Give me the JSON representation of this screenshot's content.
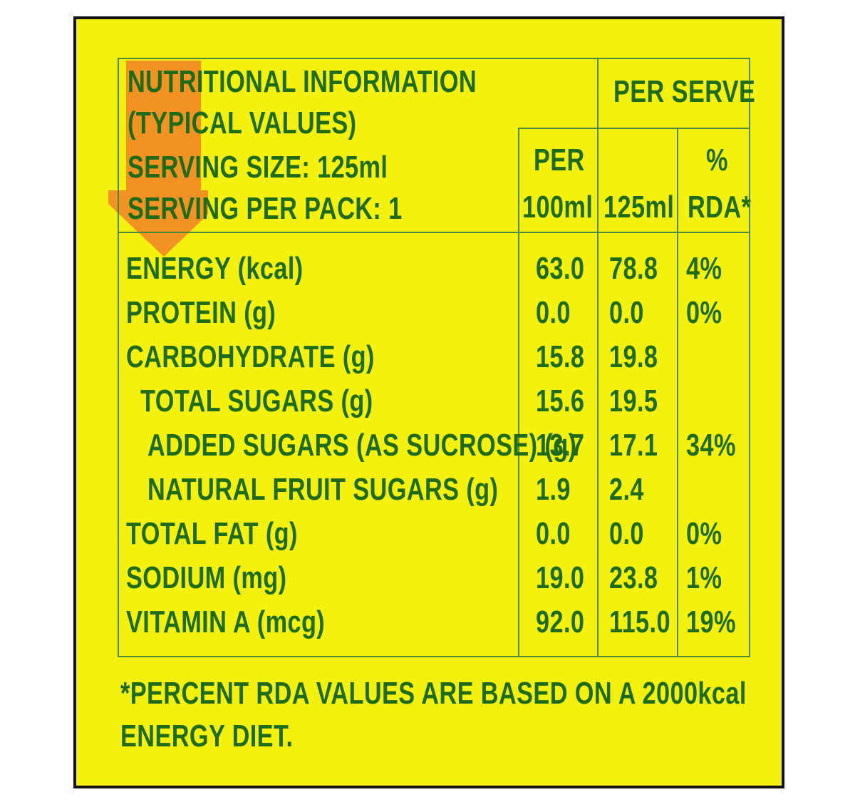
{
  "label": {
    "title_line1": "NUTRITIONAL INFORMATION",
    "title_line2": "(TYPICAL VALUES)",
    "serving_size": "SERVING SIZE: 125ml",
    "serving_per_pack": "SERVING PER PACK: 1",
    "per_serve": "PER SERVE",
    "col_per100_line1": "PER",
    "col_per100_line2": "100ml",
    "col_per125": "125ml",
    "col_rda_line1": "%",
    "col_rda_line2": "RDA*",
    "rows": [
      {
        "name": "ENERGY (kcal)",
        "per100": "63.0",
        "per125": "78.8",
        "rda": "4%"
      },
      {
        "name": "PROTEIN (g)",
        "per100": "0.0",
        "per125": "0.0",
        "rda": "0%"
      },
      {
        "name": "CARBOHYDRATE (g)",
        "per100": "15.8",
        "per125": "19.8",
        "rda": ""
      },
      {
        "name": "TOTAL SUGARS (g)",
        "per100": "15.6",
        "per125": "19.5",
        "rda": ""
      },
      {
        "name": "ADDED SUGARS (AS SUCROSE) (g)",
        "per100": "13.7",
        "per125": "17.1",
        "rda": "34%"
      },
      {
        "name": "NATURAL FRUIT SUGARS (g)",
        "per100": "1.9",
        "per125": "2.4",
        "rda": ""
      },
      {
        "name": "TOTAL FAT (g)",
        "per100": "0.0",
        "per125": "0.0",
        "rda": "0%"
      },
      {
        "name": "SODIUM (mg)",
        "per100": "19.0",
        "per125": "23.8",
        "rda": "1%"
      },
      {
        "name": "VITAMIN A (mcg)",
        "per100": "92.0",
        "per125": "115.0",
        "rda": "19%"
      }
    ],
    "footnote_line1": "*PERCENT RDA VALUES ARE BASED ON A 2000kcal",
    "footnote_line2": "ENERGY DIET."
  },
  "colors": {
    "background": "#f5f10e",
    "text": "#1e6b1a",
    "rules": "#4a8a3a",
    "arrow": "#f08a24",
    "border": "#111111"
  },
  "icons": [
    "down-arrow-icon"
  ]
}
